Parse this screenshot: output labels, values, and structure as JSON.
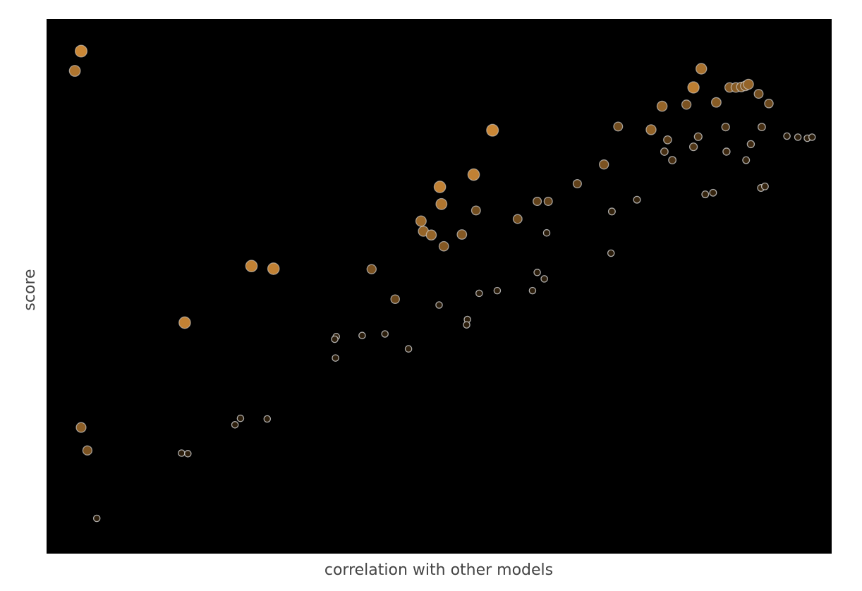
{
  "chart_data": {
    "type": "scatter",
    "title": "",
    "xlabel": "correlation with other models",
    "ylabel": "score",
    "xlim": [
      0,
      1000
    ],
    "ylim": [
      0,
      1000
    ],
    "ticks_shown": false,
    "grid": false,
    "background_color": "#000000",
    "marker_colors": {
      "strong": "#e0963c",
      "weak": "#000000",
      "edge": "#d9d9d9"
    },
    "points": [
      {
        "x": 44,
        "y": 940,
        "s": 1.0
      },
      {
        "x": 36,
        "y": 903,
        "s": 0.85
      },
      {
        "x": 824,
        "y": 872,
        "s": 0.92
      },
      {
        "x": 834,
        "y": 907,
        "s": 0.8
      },
      {
        "x": 870,
        "y": 872,
        "s": 0.6
      },
      {
        "x": 878,
        "y": 872,
        "s": 0.62
      },
      {
        "x": 885,
        "y": 873,
        "s": 0.62
      },
      {
        "x": 890,
        "y": 875,
        "s": 0.62
      },
      {
        "x": 894,
        "y": 878,
        "s": 0.7
      },
      {
        "x": 907,
        "y": 860,
        "s": 0.5
      },
      {
        "x": 920,
        "y": 842,
        "s": 0.45
      },
      {
        "x": 784,
        "y": 837,
        "s": 0.7
      },
      {
        "x": 815,
        "y": 840,
        "s": 0.55
      },
      {
        "x": 853,
        "y": 844,
        "s": 0.62
      },
      {
        "x": 865,
        "y": 798,
        "s": 0.3
      },
      {
        "x": 728,
        "y": 799,
        "s": 0.5
      },
      {
        "x": 911,
        "y": 798,
        "s": 0.25
      },
      {
        "x": 770,
        "y": 793,
        "s": 0.68
      },
      {
        "x": 943,
        "y": 781,
        "s": 0.1
      },
      {
        "x": 957,
        "y": 779,
        "s": 0.1
      },
      {
        "x": 969,
        "y": 777,
        "s": 0.1
      },
      {
        "x": 975,
        "y": 779,
        "s": 0.1
      },
      {
        "x": 830,
        "y": 780,
        "s": 0.3
      },
      {
        "x": 791,
        "y": 774,
        "s": 0.35
      },
      {
        "x": 824,
        "y": 761,
        "s": 0.3
      },
      {
        "x": 897,
        "y": 766,
        "s": 0.2
      },
      {
        "x": 787,
        "y": 752,
        "s": 0.25
      },
      {
        "x": 866,
        "y": 752,
        "s": 0.2
      },
      {
        "x": 797,
        "y": 736,
        "s": 0.25
      },
      {
        "x": 891,
        "y": 736,
        "s": 0.15
      },
      {
        "x": 568,
        "y": 792,
        "s": 1.0
      },
      {
        "x": 710,
        "y": 728,
        "s": 0.55
      },
      {
        "x": 544,
        "y": 709,
        "s": 0.95
      },
      {
        "x": 676,
        "y": 692,
        "s": 0.4
      },
      {
        "x": 501,
        "y": 686,
        "s": 0.95
      },
      {
        "x": 839,
        "y": 672,
        "s": 0.15
      },
      {
        "x": 849,
        "y": 675,
        "s": 0.15
      },
      {
        "x": 910,
        "y": 684,
        "s": 0.15
      },
      {
        "x": 915,
        "y": 687,
        "s": 0.15
      },
      {
        "x": 625,
        "y": 659,
        "s": 0.4
      },
      {
        "x": 639,
        "y": 659,
        "s": 0.4
      },
      {
        "x": 752,
        "y": 662,
        "s": 0.15
      },
      {
        "x": 503,
        "y": 654,
        "s": 0.85
      },
      {
        "x": 547,
        "y": 642,
        "s": 0.5
      },
      {
        "x": 720,
        "y": 640,
        "s": 0.15
      },
      {
        "x": 600,
        "y": 626,
        "s": 0.5
      },
      {
        "x": 477,
        "y": 622,
        "s": 0.75
      },
      {
        "x": 480,
        "y": 603,
        "s": 0.7
      },
      {
        "x": 490,
        "y": 596,
        "s": 0.7
      },
      {
        "x": 529,
        "y": 597,
        "s": 0.6
      },
      {
        "x": 506,
        "y": 575,
        "s": 0.6
      },
      {
        "x": 637,
        "y": 600,
        "s": 0.1
      },
      {
        "x": 719,
        "y": 562,
        "s": 0.1
      },
      {
        "x": 261,
        "y": 538,
        "s": 0.95
      },
      {
        "x": 289,
        "y": 533,
        "s": 0.95
      },
      {
        "x": 414,
        "y": 532,
        "s": 0.55
      },
      {
        "x": 625,
        "y": 526,
        "s": 0.1
      },
      {
        "x": 634,
        "y": 514,
        "s": 0.1
      },
      {
        "x": 551,
        "y": 487,
        "s": 0.1
      },
      {
        "x": 574,
        "y": 492,
        "s": 0.1
      },
      {
        "x": 619,
        "y": 492,
        "s": 0.1
      },
      {
        "x": 444,
        "y": 476,
        "s": 0.45
      },
      {
        "x": 500,
        "y": 465,
        "s": 0.1
      },
      {
        "x": 536,
        "y": 438,
        "s": 0.1
      },
      {
        "x": 535,
        "y": 428,
        "s": 0.1
      },
      {
        "x": 176,
        "y": 432,
        "s": 0.95
      },
      {
        "x": 369,
        "y": 406,
        "s": 0.1
      },
      {
        "x": 402,
        "y": 408,
        "s": 0.1
      },
      {
        "x": 431,
        "y": 411,
        "s": 0.1
      },
      {
        "x": 461,
        "y": 383,
        "s": 0.1
      },
      {
        "x": 367,
        "y": 401,
        "s": 0.1
      },
      {
        "x": 368,
        "y": 366,
        "s": 0.1
      },
      {
        "x": 247,
        "y": 253,
        "s": 0.1
      },
      {
        "x": 240,
        "y": 241,
        "s": 0.1
      },
      {
        "x": 281,
        "y": 252,
        "s": 0.1
      },
      {
        "x": 44,
        "y": 236,
        "s": 0.65
      },
      {
        "x": 52,
        "y": 193,
        "s": 0.55
      },
      {
        "x": 172,
        "y": 188,
        "s": 0.1
      },
      {
        "x": 180,
        "y": 187,
        "s": 0.1
      },
      {
        "x": 64,
        "y": 66,
        "s": 0.1
      }
    ]
  }
}
